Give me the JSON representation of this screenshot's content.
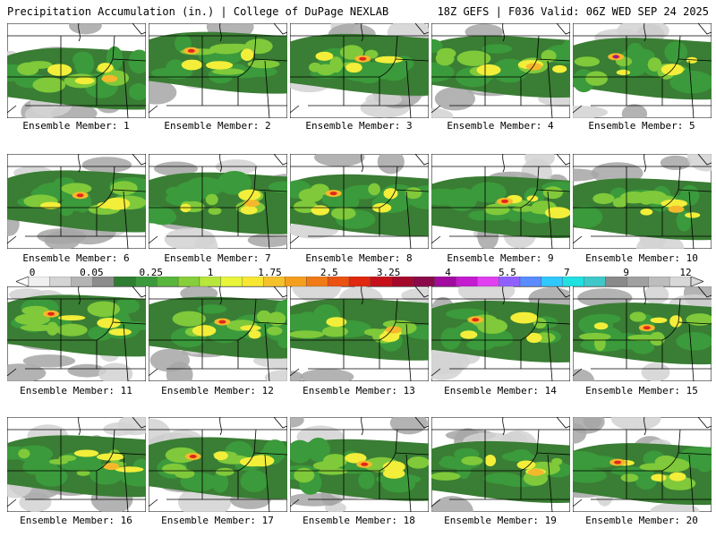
{
  "header": {
    "left": "Precipitation Accumulation (in.) | College of DuPage NEXLAB",
    "right": "18Z GEFS | F036 Valid: 06Z WED SEP 24 2025"
  },
  "members": [
    {
      "label": "Ensemble Member: 1"
    },
    {
      "label": "Ensemble Member: 2"
    },
    {
      "label": "Ensemble Member: 3"
    },
    {
      "label": "Ensemble Member: 4"
    },
    {
      "label": "Ensemble Member: 5"
    },
    {
      "label": "Ensemble Member: 6"
    },
    {
      "label": "Ensemble Member: 7"
    },
    {
      "label": "Ensemble Member: 8"
    },
    {
      "label": "Ensemble Member: 9"
    },
    {
      "label": "Ensemble Member: 10"
    },
    {
      "label": "Ensemble Member: 11"
    },
    {
      "label": "Ensemble Member: 12"
    },
    {
      "label": "Ensemble Member: 13"
    },
    {
      "label": "Ensemble Member: 14"
    },
    {
      "label": "Ensemble Member: 15"
    },
    {
      "label": "Ensemble Member: 16"
    },
    {
      "label": "Ensemble Member: 17"
    },
    {
      "label": "Ensemble Member: 18"
    },
    {
      "label": "Ensemble Member: 19"
    },
    {
      "label": "Ensemble Member: 20"
    }
  ],
  "colorscale": {
    "ticks": [
      "0",
      "0.05",
      "0.25",
      "1",
      "1.75",
      "2.5",
      "3.25",
      "4",
      "5.5",
      "7",
      "9",
      "12"
    ],
    "colors": [
      "#f0f0f0",
      "#d4d4d4",
      "#b4b4b4",
      "#8c8c8c",
      "#2e7d32",
      "#3b9a3b",
      "#58b63c",
      "#86cf3a",
      "#b8e63a",
      "#e8f53a",
      "#f7e733",
      "#f5c22c",
      "#f59e1e",
      "#f07a16",
      "#ea5212",
      "#e0280f",
      "#c5101a",
      "#a4082a",
      "#8a0a4a",
      "#a20aa0",
      "#c41ad0",
      "#e040f0",
      "#9060ff",
      "#5a8cff",
      "#30c8ff",
      "#20e0e0",
      "#40c8c8",
      "#8a8a8a",
      "#a0a0a0",
      "#bdbdbd",
      "#d8d8d8"
    ]
  },
  "map": {
    "land": "#ffffff",
    "light_gray": "#d2d2d2",
    "mid_gray": "#a6a6a6",
    "dark_green": "#3a7d34",
    "green": "#3b9a3b",
    "light_green": "#7fc93a",
    "yellow": "#f2ee3a",
    "orange": "#f5b82c",
    "red": "#e0281a",
    "purple": "#8a1ea0"
  }
}
